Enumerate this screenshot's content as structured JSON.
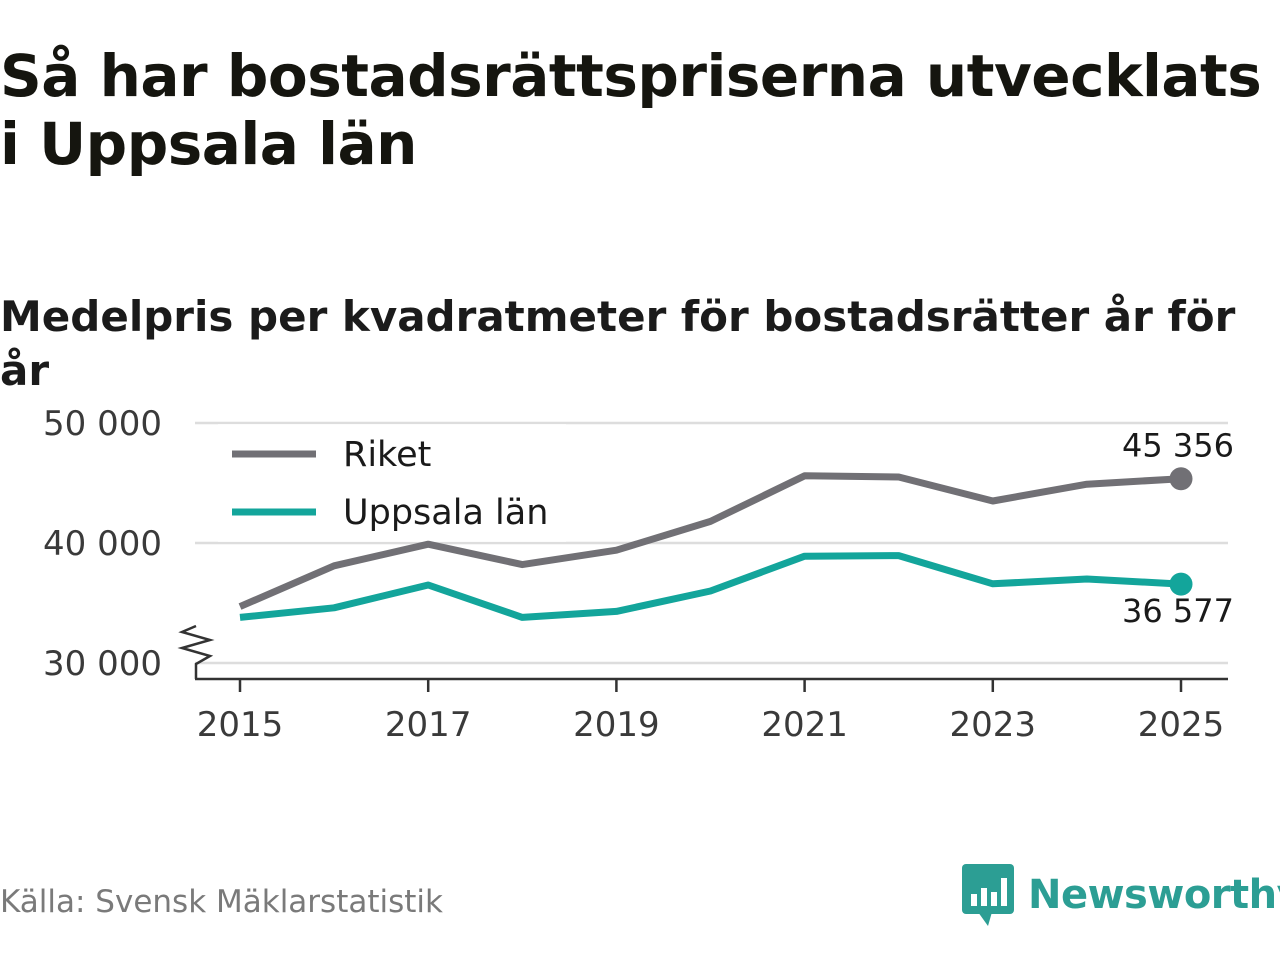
{
  "header": {
    "title": "Så har bostadsrättspriserna utvecklats i Uppsala län",
    "subtitle": "Medelpris per kvadratmeter för bostadsrätter år för år"
  },
  "footer": {
    "source": "Källa: Svensk Mäklarstatistik",
    "brand": "Newsworthy"
  },
  "colors": {
    "riket": "#717075",
    "uppsala": "#13a59b",
    "grid": "#dddddd",
    "axis": "#333333",
    "brand": "#2c9e94"
  },
  "chart_data": {
    "type": "line",
    "title": "Så har bostadsrättspriserna utvecklats i Uppsala län",
    "subtitle": "Medelpris per kvadratmeter för bostadsrätter år för år",
    "xlabel": "",
    "ylabel": "",
    "x": [
      2015,
      2016,
      2017,
      2018,
      2019,
      2020,
      2021,
      2022,
      2023,
      2024,
      2025
    ],
    "xticks": [
      "2015",
      "2017",
      "2019",
      "2021",
      "2023",
      "2025"
    ],
    "yticks": [
      "30 000",
      "40 000",
      "50 000"
    ],
    "ylim": [
      30000,
      51500
    ],
    "axis_break": true,
    "grid": true,
    "legend_position": "top-left",
    "series": [
      {
        "name": "Riket",
        "color": "#717075",
        "values": [
          34700,
          38100,
          39900,
          38200,
          39400,
          41800,
          45600,
          45500,
          43500,
          44900,
          45356
        ],
        "end_label": "45 356"
      },
      {
        "name": "Uppsala län",
        "color": "#13a59b",
        "values": [
          33800,
          34600,
          36500,
          33800,
          34300,
          36000,
          38900,
          38950,
          36600,
          37000,
          36577
        ],
        "end_label": "36 577"
      }
    ]
  }
}
